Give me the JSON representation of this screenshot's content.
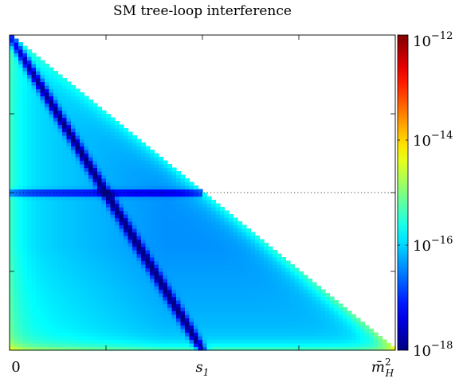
{
  "chart_data": {
    "type": "heatmap",
    "title": "SM tree-loop interference",
    "x_tick_labels": [
      {
        "value": 0,
        "base": "0",
        "sub": "",
        "sup": ""
      },
      {
        "value": 0.5,
        "base": "s",
        "sub": "1",
        "sup": ""
      },
      {
        "value": 1,
        "base": "m̄",
        "sub": "H",
        "sup": "2"
      }
    ],
    "y_ticks": [
      0.25,
      0.5,
      0.75
    ],
    "x_range": [
      0,
      1
    ],
    "y_range": [
      0,
      1
    ],
    "domain": "triangle x + y <= 1",
    "dotted_line_y": 0.5,
    "dark_features": [
      "diagonal from (0,1) to (0.5,0)",
      "horizontal band at y = 0.5 for x from 0 to 0.5"
    ],
    "colorbar": {
      "scale": "log",
      "min": 1e-18,
      "max": 1e-12,
      "ticks": [
        {
          "value": 1e-18,
          "base": "10",
          "exp": "−18"
        },
        {
          "value": 1e-16,
          "base": "10",
          "exp": "−16"
        },
        {
          "value": 1e-14,
          "base": "10",
          "exp": "−14"
        },
        {
          "value": 1e-12,
          "base": "10",
          "exp": "−12"
        }
      ],
      "colormap": "jet"
    },
    "grid": false,
    "legend": "none"
  }
}
